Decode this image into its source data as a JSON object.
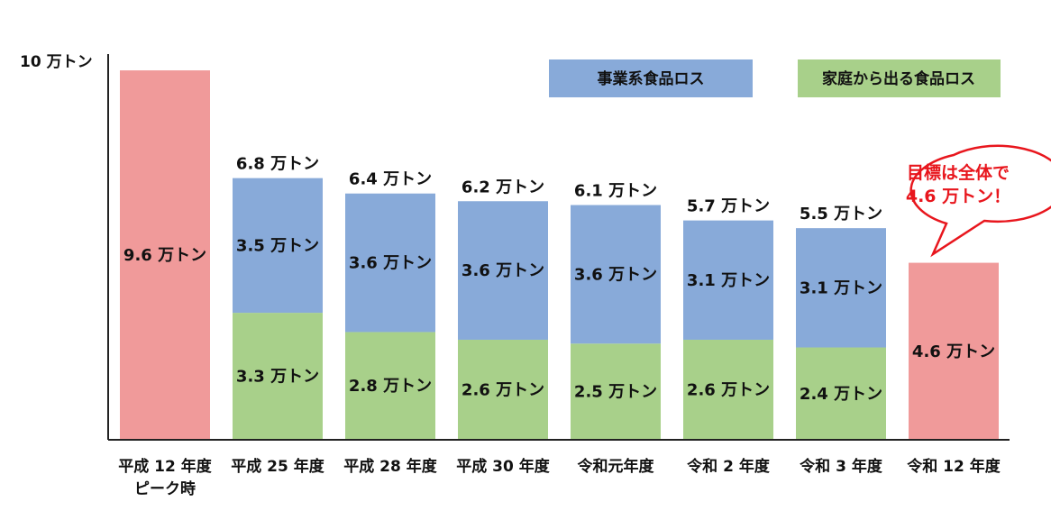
{
  "chart_data": {
    "type": "bar",
    "stacked": true,
    "ylabel": "10 万トン",
    "ylim": [
      0,
      10
    ],
    "grid": false,
    "legend_position": "top-right",
    "categories": [
      [
        "平成 12 年度",
        "ピーク時"
      ],
      [
        "平成 25 年度"
      ],
      [
        "平成 28 年度"
      ],
      [
        "平成 30 年度"
      ],
      [
        "令和元年度"
      ],
      [
        "令和 2 年度"
      ],
      [
        "令和 3 年度"
      ],
      [
        "令和 12 年度"
      ]
    ],
    "bars": [
      {
        "kind": "single",
        "value": 9.6,
        "label": "9.6 万トン",
        "color": "#f09a9a"
      },
      {
        "kind": "stacked",
        "total": 6.8,
        "total_label": "6.8 万トン",
        "business": 3.5,
        "business_label": "3.5 万トン",
        "household": 3.3,
        "household_label": "3.3 万トン"
      },
      {
        "kind": "stacked",
        "total": 6.4,
        "total_label": "6.4 万トン",
        "business": 3.6,
        "business_label": "3.6 万トン",
        "household": 2.8,
        "household_label": "2.8 万トン"
      },
      {
        "kind": "stacked",
        "total": 6.2,
        "total_label": "6.2 万トン",
        "business": 3.6,
        "business_label": "3.6 万トン",
        "household": 2.6,
        "household_label": "2.6 万トン"
      },
      {
        "kind": "stacked",
        "total": 6.1,
        "total_label": "6.1 万トン",
        "business": 3.6,
        "business_label": "3.6 万トン",
        "household": 2.5,
        "household_label": "2.5 万トン"
      },
      {
        "kind": "stacked",
        "total": 5.7,
        "total_label": "5.7 万トン",
        "business": 3.1,
        "business_label": "3.1 万トン",
        "household": 2.6,
        "household_label": "2.6 万トン"
      },
      {
        "kind": "stacked",
        "total": 5.5,
        "total_label": "5.5 万トン",
        "business": 3.1,
        "business_label": "3.1 万トン",
        "household": 2.4,
        "household_label": "2.4 万トン"
      },
      {
        "kind": "single",
        "value": 4.6,
        "label": "4.6 万トン",
        "color": "#f09a9a"
      }
    ],
    "series": [
      {
        "name": "事業系食品ロス",
        "color": "#88aad9"
      },
      {
        "name": "家庭から出る食品ロス",
        "color": "#a8d08a"
      }
    ],
    "annotation": {
      "lines": [
        "目標は全体で",
        "4.6 万トン！"
      ],
      "color": "#e8161d"
    }
  }
}
